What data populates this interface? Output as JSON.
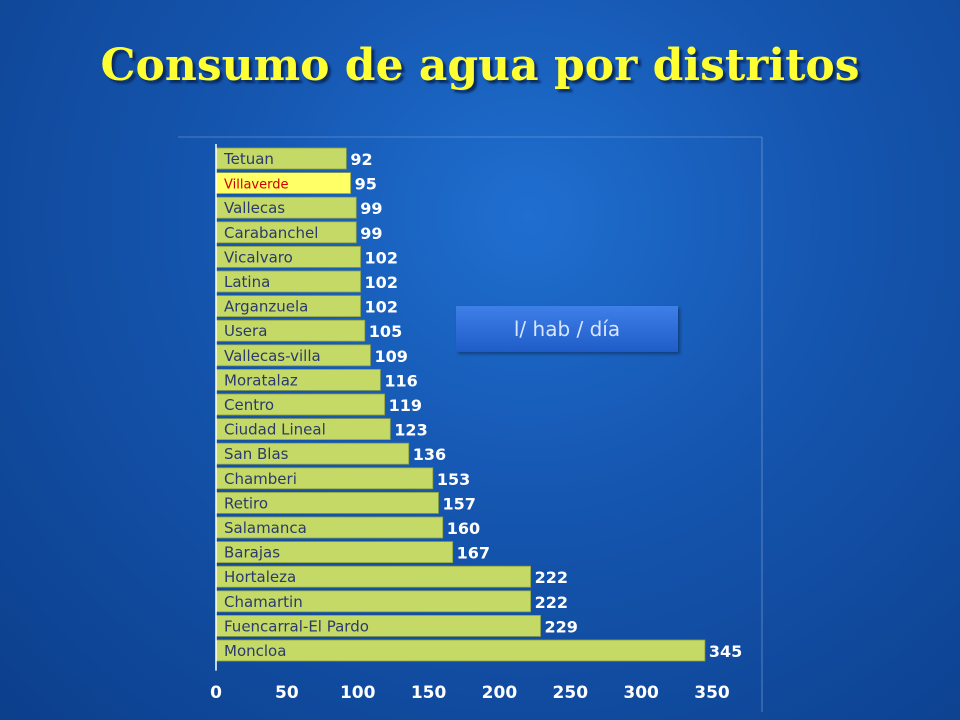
{
  "page": {
    "title": "Consumo de agua por distritos",
    "unit_label": "l/ hab / día"
  },
  "chart_data": {
    "type": "bar",
    "orientation": "horizontal",
    "title": "",
    "xlabel": "",
    "ylabel": "",
    "xlim": [
      0,
      350
    ],
    "x_ticks": [
      0,
      50,
      100,
      150,
      200,
      250,
      300,
      350
    ],
    "categories": [
      "Tetuan",
      "Villaverde",
      "Vallecas",
      "Carabanchel",
      "Vicalvaro",
      "Latina",
      "Arganzuela",
      "Usera",
      "Vallecas-villa",
      "Moratalaz",
      "Centro",
      "Ciudad Lineal",
      "San Blas",
      "Chamberi",
      "Retiro",
      "Salamanca",
      "Barajas",
      "Hortaleza",
      "Chamartin",
      "Fuencarral-El Pardo",
      "Moncloa"
    ],
    "values": [
      92,
      95,
      99,
      99,
      102,
      102,
      102,
      105,
      109,
      116,
      119,
      123,
      136,
      153,
      157,
      160,
      167,
      222,
      222,
      229,
      345
    ],
    "highlighted_category": "Villaverde",
    "colors": {
      "bar": "#c5d966",
      "highlight": "#ffff66",
      "label": "#2a3a6e",
      "highlight_label": "#cc0000",
      "value": "#ffffff",
      "axis": "#ffffff"
    },
    "grid": false,
    "legend": "none"
  }
}
